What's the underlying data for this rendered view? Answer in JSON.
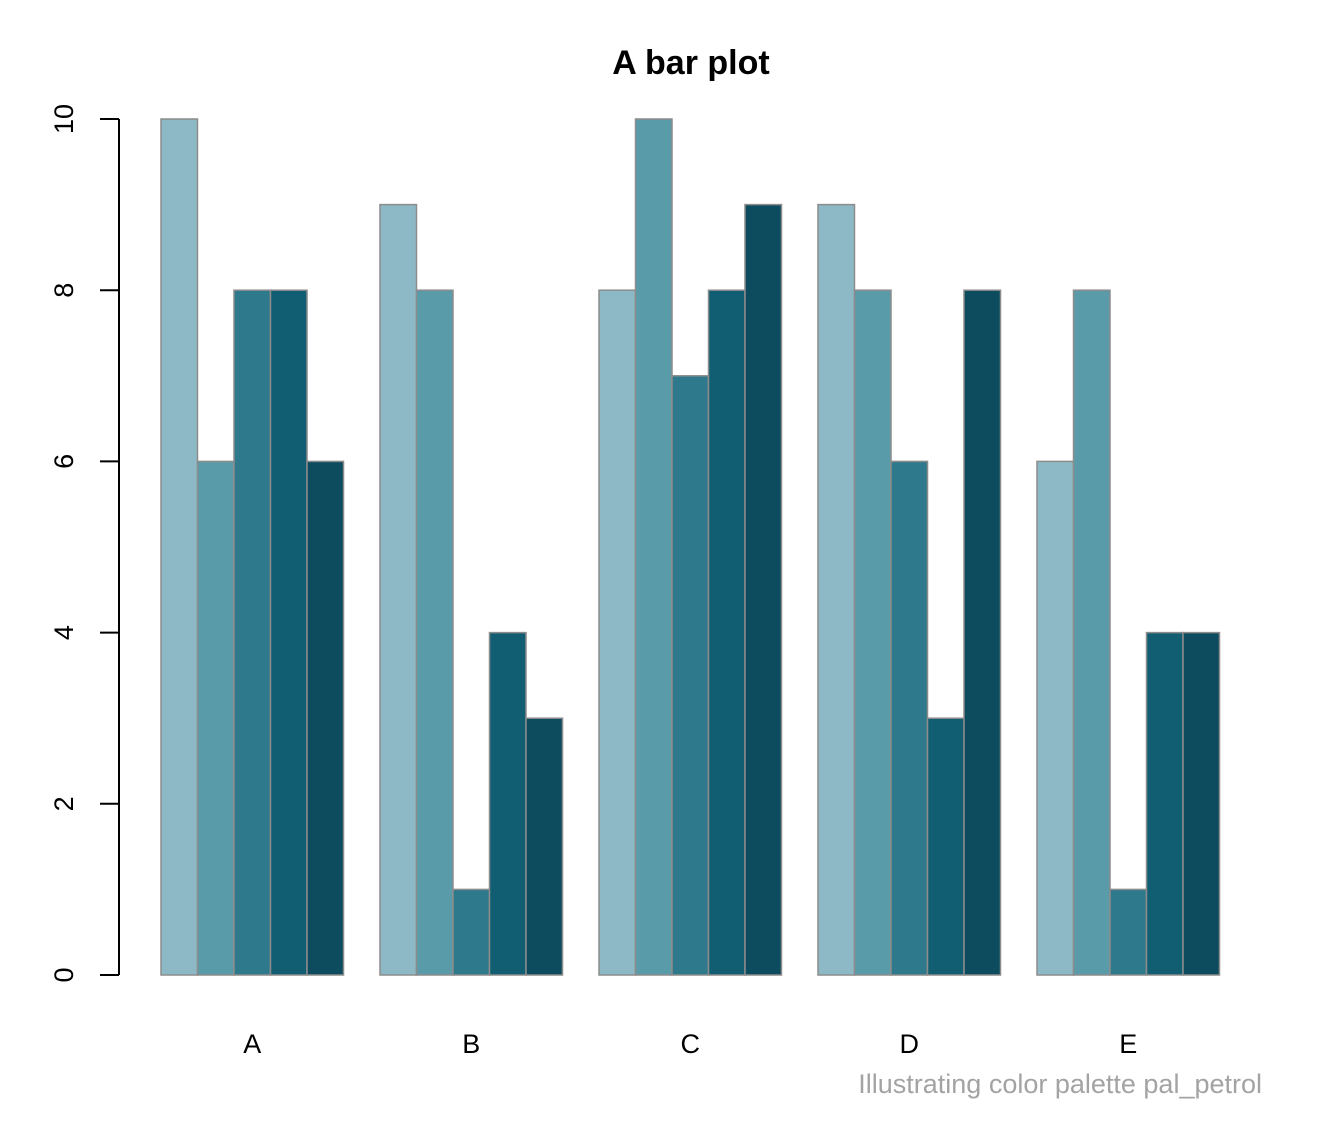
{
  "chart_data": {
    "type": "bar",
    "title": "A bar plot",
    "caption": "Illustrating color palette pal_petrol",
    "xlabel": "",
    "ylabel": "",
    "categories": [
      "A",
      "B",
      "C",
      "D",
      "E"
    ],
    "series": [
      {
        "values": [
          10,
          9,
          8,
          9,
          6
        ],
        "color": "#8DB9C6"
      },
      {
        "values": [
          6,
          8,
          10,
          8,
          8
        ],
        "color": "#5A9BAA"
      },
      {
        "values": [
          8,
          1,
          7,
          6,
          1
        ],
        "color": "#2E7A8C"
      },
      {
        "values": [
          8,
          4,
          8,
          3,
          4
        ],
        "color": "#115E72"
      },
      {
        "values": [
          6,
          3,
          9,
          8,
          4
        ],
        "color": "#0D4C5E"
      }
    ],
    "ylim": [
      0,
      10
    ],
    "yticks": [
      0,
      2,
      4,
      6,
      8,
      10
    ],
    "bar_border_color": "#8C8C8C",
    "grid": false,
    "legend": "none"
  }
}
